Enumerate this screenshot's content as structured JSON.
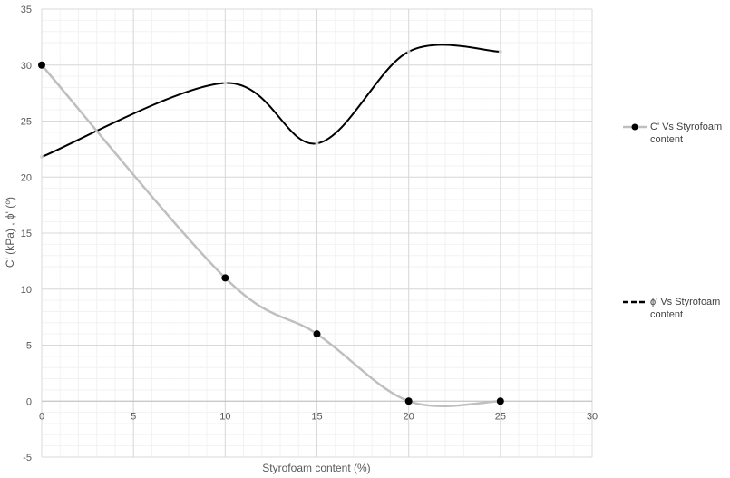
{
  "chart_data": {
    "type": "scatter",
    "title": "",
    "xlabel": "Styrofoam content (%)",
    "ylabel": "C' (kPa) , ϕ' (⁰)",
    "xlim": [
      0,
      30
    ],
    "ylim": [
      -5,
      35
    ],
    "xticks": [
      0,
      5,
      10,
      15,
      20,
      25,
      30
    ],
    "yticks": [
      -5,
      0,
      5,
      10,
      15,
      20,
      25,
      30,
      35
    ],
    "grid": true,
    "minor_grid": true,
    "smooth_lines": true,
    "legend_position": "right",
    "series": [
      {
        "name": "C' Vs Styrofoam content",
        "legend_lines": [
          "C' Vs Styrofoam",
          "content"
        ],
        "x": [
          0,
          10,
          15,
          20,
          25
        ],
        "y": [
          30,
          11,
          6,
          0,
          0
        ],
        "line_color": "#bfbfbf",
        "marker_color": "#000000",
        "marker": "circle",
        "line_style": "solid"
      },
      {
        "name": "ϕ' Vs Styrofoam content",
        "legend_lines": [
          "ϕ' Vs Styrofoam",
          "content"
        ],
        "x": [
          0,
          10,
          15,
          20,
          25
        ],
        "y": [
          21.8,
          28.4,
          23,
          31.2,
          31.2
        ],
        "line_color": "#000000",
        "marker_color": "#d9d9d9",
        "marker": "none",
        "line_style": "dashed"
      }
    ]
  }
}
